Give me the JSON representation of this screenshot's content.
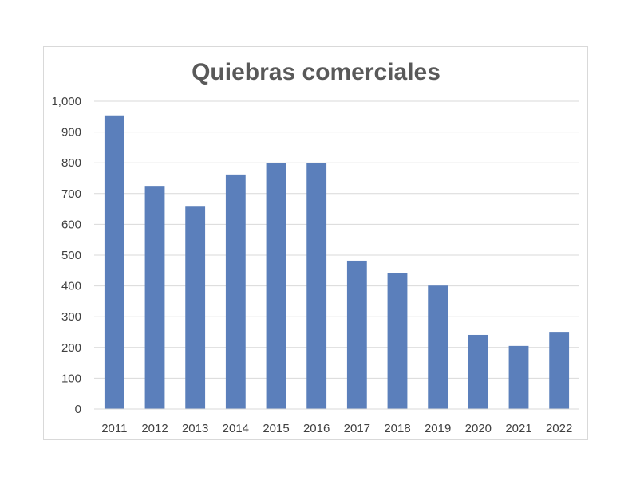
{
  "chart_data": {
    "type": "bar",
    "title": "Quiebras comerciales",
    "xlabel": "",
    "ylabel": "",
    "categories": [
      "2011",
      "2012",
      "2013",
      "2014",
      "2015",
      "2016",
      "2017",
      "2018",
      "2019",
      "2020",
      "2021",
      "2022"
    ],
    "values": [
      954,
      725,
      660,
      762,
      798,
      800,
      482,
      443,
      401,
      241,
      205,
      251
    ],
    "ylim": [
      0,
      1000
    ],
    "yticks": [
      0,
      100,
      200,
      300,
      400,
      500,
      600,
      700,
      800,
      900,
      1000
    ],
    "ytick_labels": [
      "0",
      "100",
      "200",
      "300",
      "400",
      "500",
      "600",
      "700",
      "800",
      "900",
      "1,000"
    ],
    "grid": true,
    "legend": "none",
    "bar_color": "#5b7fbb",
    "grid_color": "#d9d9d9"
  }
}
